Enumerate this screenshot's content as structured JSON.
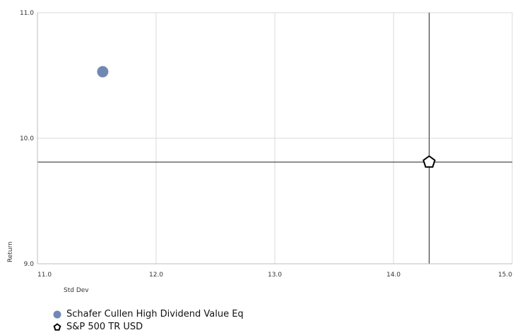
{
  "chart_data": {
    "type": "scatter",
    "xlabel": "Std Dev",
    "ylabel": "Return",
    "xlim": [
      11.0,
      15.0
    ],
    "ylim": [
      9.0,
      11.0
    ],
    "x_ticks": [
      "11.0",
      "12.0",
      "13.0",
      "14.0",
      "15.0"
    ],
    "y_ticks": [
      "9.0",
      "10.0",
      "11.0"
    ],
    "x_tick_values": [
      11.0,
      12.0,
      13.0,
      14.0,
      15.0
    ],
    "y_tick_values": [
      9.0,
      10.0,
      11.0
    ],
    "grid": true,
    "legend_position": "bottom-left",
    "series": [
      {
        "name": "Schafer Cullen High Dividend Value Eq",
        "x": 11.55,
        "y": 10.53,
        "marker": "circle",
        "color": "#7089b3"
      },
      {
        "name": "S&P 500 TR USD",
        "x": 14.3,
        "y": 9.81,
        "marker": "pentagon",
        "color": "#000000",
        "crosshair": true
      }
    ]
  },
  "legend": {
    "items": [
      {
        "label": "Schafer Cullen High Dividend Value Eq",
        "icon": "circle-marker-icon"
      },
      {
        "label": "S&P 500 TR USD",
        "icon": "pentagon-marker-icon"
      }
    ]
  }
}
